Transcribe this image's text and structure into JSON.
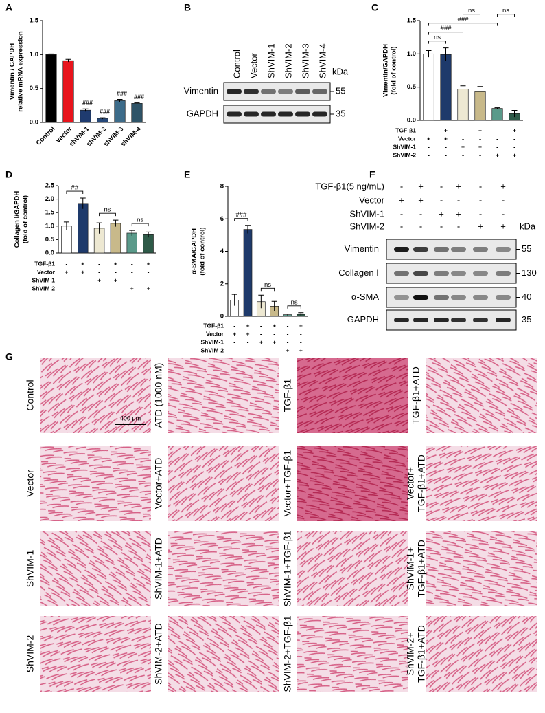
{
  "chart_data": [
    {
      "type": "bar",
      "label": "A",
      "ylabel": [
        "Vimentin / GAPDH",
        "relative mRNA expression"
      ],
      "categories": [
        "Control",
        "Vector",
        "shVIM-1",
        "shVIM-2",
        "shVIM-3",
        "shVIM-4"
      ],
      "values": [
        1.0,
        0.91,
        0.18,
        0.06,
        0.32,
        0.28
      ],
      "errors": [
        0.01,
        0.02,
        0.02,
        0.01,
        0.02,
        0.01
      ],
      "colors": [
        "#000000",
        "#e8141c",
        "#1f3b6f",
        "#25487a",
        "#3d6c8a",
        "#2f5468"
      ],
      "annotations": [
        null,
        null,
        "###",
        "###",
        "###",
        "###"
      ],
      "ylim": [
        0,
        1.5
      ],
      "yticks": [
        {
          "value": 0,
          "label": "0.0"
        },
        {
          "value": 0.5,
          "label": "0.5"
        },
        {
          "value": 1,
          "label": "1.0"
        },
        {
          "value": 1.5,
          "label": "1.5"
        }
      ]
    },
    {
      "type": "bar",
      "label": "C",
      "ylabel": [
        "Vimentin/GAPDH",
        "(fold of control)"
      ],
      "values": [
        1.0,
        0.99,
        0.47,
        0.43,
        0.18,
        0.1
      ],
      "errors": [
        0.05,
        0.1,
        0.05,
        0.08,
        0.01,
        0.05
      ],
      "colors": [
        "#ffffff",
        "#1e3a6b",
        "#ede8d2",
        "#c8b98a",
        "#5a9a8a",
        "#2e5a48"
      ],
      "conditions": [
        {
          "name": "TGF-β1",
          "signs": [
            "-",
            "+",
            "-",
            "+",
            "-",
            "+"
          ]
        },
        {
          "name": "Vector",
          "signs": [
            "+",
            "+",
            "-",
            "-",
            "-",
            "-"
          ]
        },
        {
          "name": "ShVIM-1",
          "signs": [
            "-",
            "-",
            "+",
            "+",
            "-",
            "-"
          ]
        },
        {
          "name": "ShVIM-2",
          "signs": [
            "-",
            "-",
            "-",
            "-",
            "+",
            "+"
          ]
        }
      ],
      "comparisons": [
        {
          "from": 0,
          "to": 1,
          "label": "ns"
        },
        {
          "from": 0,
          "to": 2,
          "label": "###"
        },
        {
          "from": 0,
          "to": 4,
          "label": "###"
        },
        {
          "from": 2,
          "to": 3,
          "label": "ns"
        },
        {
          "from": 4,
          "to": 5,
          "label": "ns"
        }
      ],
      "ylim": [
        0,
        1.5
      ],
      "yticks": [
        {
          "value": 0,
          "label": "0.0"
        },
        {
          "value": 0.5,
          "label": "0.5"
        },
        {
          "value": 1,
          "label": "1.0"
        },
        {
          "value": 1.5,
          "label": "1.5"
        }
      ]
    },
    {
      "type": "bar",
      "label": "D",
      "ylabel": [
        "Collagen Ⅰ/GAPDH",
        "(fold of control)"
      ],
      "values": [
        1.0,
        1.84,
        0.92,
        1.1,
        0.74,
        0.68
      ],
      "errors": [
        0.15,
        0.2,
        0.2,
        0.12,
        0.1,
        0.1
      ],
      "colors": [
        "#ffffff",
        "#1e3a6b",
        "#ede8d2",
        "#c8b98a",
        "#5a9a8a",
        "#2e5a48"
      ],
      "conditions": [
        {
          "name": "TGF-β1",
          "signs": [
            "-",
            "+",
            "-",
            "+",
            "-",
            "+"
          ]
        },
        {
          "name": "Vector",
          "signs": [
            "+",
            "+",
            "-",
            "-",
            "-",
            "-"
          ]
        },
        {
          "name": "ShVIM-1",
          "signs": [
            "-",
            "-",
            "+",
            "+",
            "-",
            "-"
          ]
        },
        {
          "name": "ShVIM-2",
          "signs": [
            "-",
            "-",
            "-",
            "-",
            "+",
            "+"
          ]
        }
      ],
      "comparisons": [
        {
          "from": 0,
          "to": 1,
          "label": "##"
        },
        {
          "from": 2,
          "to": 3,
          "label": "ns"
        },
        {
          "from": 4,
          "to": 5,
          "label": "ns"
        }
      ],
      "ylim": [
        0,
        2.5
      ],
      "yticks": [
        {
          "value": 0,
          "label": "0.0"
        },
        {
          "value": 0.5,
          "label": "0.5"
        },
        {
          "value": 1,
          "label": "1.0"
        },
        {
          "value": 1.5,
          "label": "1.5"
        },
        {
          "value": 2,
          "label": "2.0"
        },
        {
          "value": 2.5,
          "label": "2.5"
        }
      ]
    },
    {
      "type": "bar",
      "label": "E",
      "ylabel": [
        "α-SMA/GAPDH",
        "(fold of control)"
      ],
      "values": [
        1.0,
        5.35,
        0.9,
        0.62,
        0.1,
        0.12
      ],
      "errors": [
        0.35,
        0.25,
        0.4,
        0.3,
        0.05,
        0.1
      ],
      "colors": [
        "#ffffff",
        "#1e3a6b",
        "#ede8d2",
        "#c8b98a",
        "#5a9a8a",
        "#2e5a48"
      ],
      "conditions": [
        {
          "name": "TGF-β1",
          "signs": [
            "-",
            "+",
            "-",
            "+",
            "-",
            "+"
          ]
        },
        {
          "name": "Vector",
          "signs": [
            "+",
            "+",
            "-",
            "-",
            "-",
            "-"
          ]
        },
        {
          "name": "ShVIM-1",
          "signs": [
            "-",
            "-",
            "+",
            "+",
            "-",
            "-"
          ]
        },
        {
          "name": "ShVIM-2",
          "signs": [
            "-",
            "-",
            "-",
            "-",
            "+",
            "+"
          ]
        }
      ],
      "comparisons": [
        {
          "from": 0,
          "to": 1,
          "label": "###"
        },
        {
          "from": 2,
          "to": 3,
          "label": "ns"
        },
        {
          "from": 4,
          "to": 5,
          "label": "ns"
        }
      ],
      "ylim": [
        0,
        8
      ],
      "yticks": [
        0,
        2,
        4,
        6,
        8
      ]
    }
  ],
  "blots": [
    {
      "label": "B",
      "lanes": [
        "Control",
        "Vector",
        "ShVIM-1",
        "ShVIM-2",
        "ShVIM-3",
        "ShVIM-4"
      ],
      "unit": "kDa",
      "rows": [
        {
          "name": "Vimentin",
          "kda": 55
        },
        {
          "name": "GAPDH",
          "kda": 35
        }
      ]
    },
    {
      "label": "F",
      "unit": "kDa",
      "treatments": [
        {
          "name": "TGF-β1(5 ng/mL)",
          "signs": [
            "-",
            "+",
            "-",
            "+",
            "-",
            "+"
          ]
        },
        {
          "name": "Vector",
          "signs": [
            "+",
            "+",
            "-",
            "-",
            "-",
            "-"
          ]
        },
        {
          "name": "ShVIM-1",
          "signs": [
            "-",
            "-",
            "+",
            "+",
            "-",
            "-"
          ]
        },
        {
          "name": "ShVIM-2",
          "signs": [
            "-",
            "-",
            "-",
            "-",
            "+",
            "+"
          ]
        }
      ],
      "rows": [
        {
          "name": "Vimentin",
          "kda": 55
        },
        {
          "name": "Collagen Ⅰ",
          "kda": 130
        },
        {
          "name": "α-SMA",
          "kda": 40
        },
        {
          "name": "GAPDH",
          "kda": 35
        }
      ]
    }
  ],
  "micrographs": {
    "label": "G",
    "scale_bar": "400 μm",
    "rows": [
      [
        [
          "Control"
        ],
        [
          "ATD (1000 nM)"
        ],
        [
          "TGF-β1"
        ],
        [
          "TGF-β1+ATD"
        ]
      ],
      [
        [
          "Vector"
        ],
        [
          "Vector+ATD"
        ],
        [
          "Vector+TGF-β1"
        ],
        [
          "Vector+",
          "TGF-β1+ATD"
        ]
      ],
      [
        [
          "ShVIM-1"
        ],
        [
          "ShVIM-1+ATD"
        ],
        [
          "ShVIM-1+TGF-β1"
        ],
        [
          "ShVIM-1+",
          "TGF-β1+ATD"
        ]
      ],
      [
        [
          "ShVIM-2"
        ],
        [
          "ShVIM-2+ATD"
        ],
        [
          "ShVIM-2+TGF-β1"
        ],
        [
          "ShVIM-2+",
          "TGF-β1+ATD"
        ]
      ]
    ]
  }
}
